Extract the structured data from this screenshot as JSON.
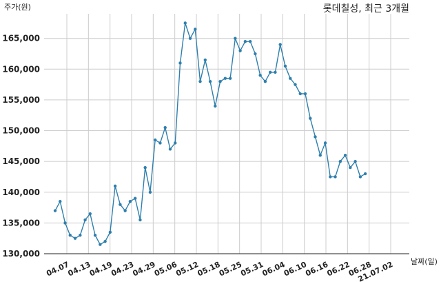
{
  "chart_data": {
    "type": "line",
    "title": "롯데칠성, 최근 3개월",
    "ylabel": "주가(원)",
    "xlabel": "날짜(일)",
    "ylim": [
      130000,
      169000
    ],
    "yticks": [
      130000,
      135000,
      140000,
      145000,
      150000,
      155000,
      160000,
      165000
    ],
    "ytick_labels": [
      "130,000",
      "135,000",
      "140,000",
      "145,000",
      "150,000",
      "155,000",
      "160,000",
      "165,000"
    ],
    "xtick_labels": [
      "04.07",
      "04.13",
      "04.19",
      "04.23",
      "04.29",
      "05.06",
      "05.12",
      "05.18",
      "05.25",
      "05.31",
      "06.04",
      "06.10",
      "06.16",
      "06.22",
      "06.28",
      "21.07.02"
    ],
    "grid": true,
    "line_color": "#2e7fad",
    "series": [
      {
        "values": [
          137000,
          138500,
          135000,
          133000,
          132500,
          133000,
          135500,
          136500,
          133000,
          131500,
          132000,
          133500,
          141000,
          138000,
          137000,
          138500,
          139000,
          135500,
          144000,
          140000,
          148500,
          148000,
          150500,
          147000,
          148000,
          161000,
          167500,
          165000,
          166500,
          158000,
          161500,
          158000,
          154000,
          158000,
          158500,
          158500,
          165000,
          163000,
          164500,
          164500,
          162500,
          159000,
          158000,
          159500,
          159500,
          164000,
          160500,
          158500,
          157500,
          156000,
          156000,
          152000,
          149000,
          146000,
          148000,
          142500,
          142500,
          145000,
          146000,
          144000,
          145000,
          142500,
          143000
        ]
      }
    ]
  }
}
